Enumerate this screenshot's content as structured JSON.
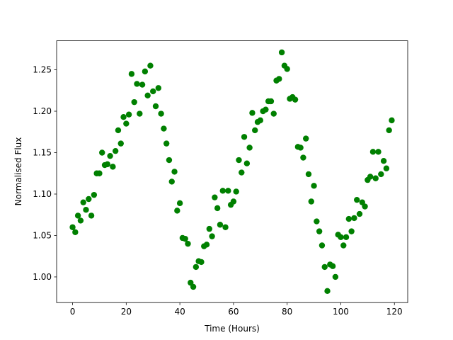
{
  "chart_data": {
    "type": "scatter",
    "x_label": "Time (Hours)",
    "y_label": "Normalised Flux",
    "color": "#008000",
    "x": [
      0,
      1,
      2,
      3,
      4,
      5,
      6,
      7,
      8,
      9,
      10,
      11,
      12,
      13,
      14,
      15,
      16,
      17,
      18,
      19,
      20,
      21,
      22,
      23,
      24,
      25,
      26,
      27,
      28,
      29,
      30,
      31,
      32,
      33,
      34,
      35,
      36,
      37,
      38,
      39,
      40,
      41,
      42,
      43,
      44,
      45,
      46,
      47,
      48,
      49,
      50,
      51,
      52,
      53,
      54,
      55,
      56,
      57,
      58,
      59,
      60,
      61,
      62,
      63,
      64,
      65,
      66,
      67,
      68,
      69,
      70,
      71,
      72,
      73,
      74,
      75,
      76,
      77,
      78,
      79,
      80,
      81,
      82,
      83,
      84,
      85,
      86,
      87,
      88,
      89,
      90,
      91,
      92,
      93,
      94,
      95,
      96,
      97,
      98,
      99,
      100,
      101,
      102,
      103,
      104,
      105,
      106,
      107,
      108,
      109,
      110,
      111,
      112,
      113,
      114,
      115,
      116,
      117,
      118,
      119
    ],
    "values": [
      1.06,
      1.054,
      1.074,
      1.068,
      1.09,
      1.081,
      1.094,
      1.074,
      1.099,
      1.125,
      1.125,
      1.15,
      1.135,
      1.136,
      1.146,
      1.133,
      1.152,
      1.177,
      1.161,
      1.193,
      1.185,
      1.196,
      1.245,
      1.211,
      1.233,
      1.197,
      1.232,
      1.248,
      1.219,
      1.255,
      1.224,
      1.206,
      1.228,
      1.197,
      1.179,
      1.161,
      1.141,
      1.115,
      1.127,
      1.08,
      1.089,
      1.047,
      1.046,
      1.04,
      0.993,
      0.988,
      1.012,
      1.019,
      1.018,
      1.037,
      1.039,
      1.058,
      1.049,
      1.096,
      1.083,
      1.063,
      1.104,
      1.06,
      1.104,
      1.087,
      1.091,
      1.103,
      1.141,
      1.126,
      1.169,
      1.137,
      1.156,
      1.198,
      1.177,
      1.187,
      1.189,
      1.2,
      1.202,
      1.212,
      1.212,
      1.197,
      1.237,
      1.239,
      1.271,
      1.255,
      1.251,
      1.215,
      1.217,
      1.214,
      1.157,
      1.156,
      1.144,
      1.167,
      1.124,
      1.091,
      1.11,
      1.067,
      1.055,
      1.038,
      1.012,
      0.983,
      1.015,
      1.013,
      1.0,
      1.051,
      1.048,
      1.038,
      1.048,
      1.07,
      1.055,
      1.071,
      1.093,
      1.076,
      1.09,
      1.085,
      1.117,
      1.121,
      1.151,
      1.119,
      1.151,
      1.124,
      1.14,
      1.131,
      1.177,
      1.189
    ],
    "xlim": [
      -5.95,
      124.95
    ],
    "xticks": [
      0,
      20,
      40,
      60,
      80,
      100,
      120
    ],
    "ylim": [
      0.969,
      1.285
    ],
    "yticks": [
      {
        "value": 1.0,
        "label": "1.00"
      },
      1.05,
      {
        "value": 1.1,
        "label": "1.10"
      },
      1.15,
      {
        "value": 1.2,
        "label": "1.20"
      },
      1.25
    ]
  }
}
